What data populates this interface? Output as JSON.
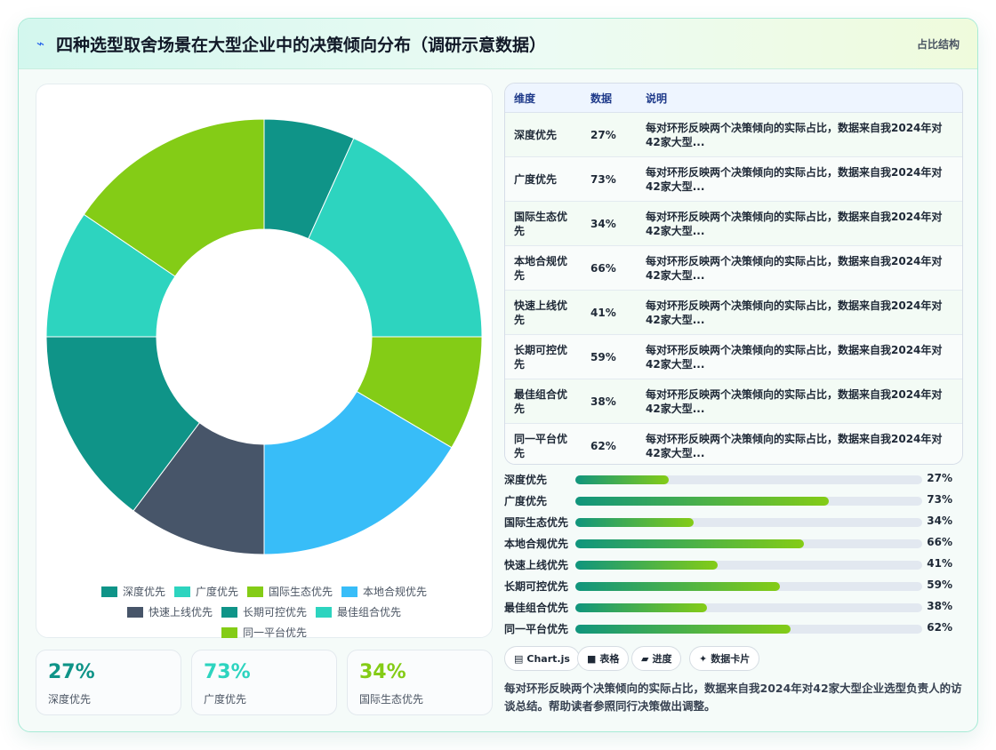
{
  "header": {
    "title": "四种选型取舍场景在大型企业中的决策倾向分布（调研示意数据）",
    "badge": "占比结构",
    "icon": "bolt-icon"
  },
  "colors": {
    "teal_dark": "#0f9488",
    "teal_light": "#2dd4bf",
    "lime": "#84cc16",
    "sky": "#38bdf8",
    "slate": "#475569"
  },
  "chart_data": {
    "type": "pie",
    "donut": true,
    "title": "",
    "categories": [
      "深度优先",
      "广度优先",
      "国际生态优先",
      "本地合规优先",
      "快速上线优先",
      "长期可控优先",
      "最佳组合优先",
      "同一平台优先"
    ],
    "values": [
      27,
      73,
      34,
      66,
      41,
      59,
      38,
      62
    ],
    "colors": [
      "#0f9488",
      "#2dd4bf",
      "#84cc16",
      "#38bdf8",
      "#475569",
      "#0f9488",
      "#2dd4bf",
      "#84cc16"
    ],
    "legend_position": "bottom"
  },
  "stats": [
    {
      "value": "27%",
      "label": "深度优先",
      "color": "#0f9488"
    },
    {
      "value": "73%",
      "label": "广度优先",
      "color": "#2dd4bf"
    },
    {
      "value": "34%",
      "label": "国际生态优先",
      "color": "#84cc16"
    }
  ],
  "table": {
    "headers": [
      "维度",
      "数据",
      "说明"
    ],
    "rows": [
      {
        "name": "深度优先",
        "value": "27%",
        "desc": "每对环形反映两个决策倾向的实际占比，数据来自我2024年对42家大型..."
      },
      {
        "name": "广度优先",
        "value": "73%",
        "desc": "每对环形反映两个决策倾向的实际占比，数据来自我2024年对42家大型..."
      },
      {
        "name": "国际生态优先",
        "value": "34%",
        "desc": "每对环形反映两个决策倾向的实际占比，数据来自我2024年对42家大型..."
      },
      {
        "name": "本地合规优先",
        "value": "66%",
        "desc": "每对环形反映两个决策倾向的实际占比，数据来自我2024年对42家大型..."
      },
      {
        "name": "快速上线优先",
        "value": "41%",
        "desc": "每对环形反映两个决策倾向的实际占比，数据来自我2024年对42家大型..."
      },
      {
        "name": "长期可控优先",
        "value": "59%",
        "desc": "每对环形反映两个决策倾向的实际占比，数据来自我2024年对42家大型..."
      },
      {
        "name": "最佳组合优先",
        "value": "38%",
        "desc": "每对环形反映两个决策倾向的实际占比，数据来自我2024年对42家大型..."
      },
      {
        "name": "同一平台优先",
        "value": "62%",
        "desc": "每对环形反映两个决策倾向的实际占比，数据来自我2024年对42家大型..."
      }
    ]
  },
  "progress": [
    {
      "label": "深度优先",
      "value": 27,
      "text": "27%"
    },
    {
      "label": "广度优先",
      "value": 73,
      "text": "73%"
    },
    {
      "label": "国际生态优先",
      "value": 34,
      "text": "34%"
    },
    {
      "label": "本地合规优先",
      "value": 66,
      "text": "66%"
    },
    {
      "label": "快速上线优先",
      "value": 41,
      "text": "41%"
    },
    {
      "label": "长期可控优先",
      "value": 59,
      "text": "59%"
    },
    {
      "label": "最佳组合优先",
      "value": 38,
      "text": "38%"
    },
    {
      "label": "同一平台优先",
      "value": 62,
      "text": "62%"
    }
  ],
  "chips": [
    {
      "icon": "▤",
      "label": "Chart.js"
    },
    {
      "icon": "■",
      "label": "表格"
    },
    {
      "icon": "▰",
      "label": "进度"
    },
    {
      "icon": "✦",
      "label": "数据卡片"
    }
  ],
  "note": "每对环形反映两个决策倾向的实际占比，数据来自我2024年对42家大型企业选型负责人的访谈总结。帮助读者参照同行决策做出调整。"
}
